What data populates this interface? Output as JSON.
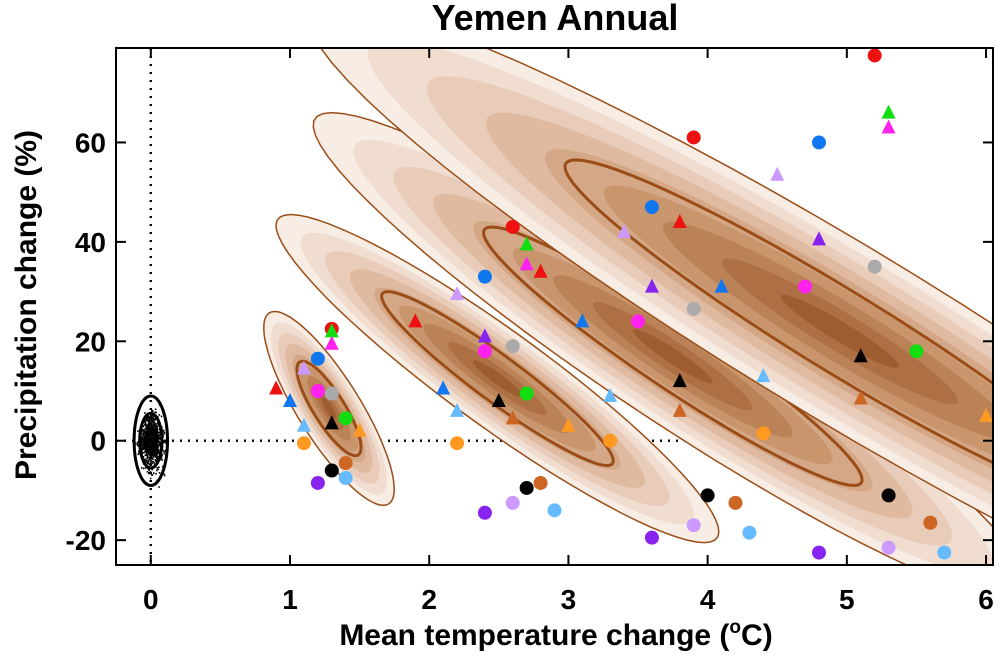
{
  "chart_data": {
    "type": "scatter",
    "title": "Yemen Annual",
    "xlabel": "Mean temperature change (",
    "xlabel_unit": "o",
    "xlabel_suffix": "C)",
    "ylabel": "Precipitation change (%)",
    "xlim": [
      -0.25,
      6.05
    ],
    "ylim": [
      -25,
      79
    ],
    "xticks": [
      0,
      1,
      2,
      3,
      4,
      5,
      6
    ],
    "xtick_labels": [
      "0",
      "1",
      "2",
      "3",
      "4",
      "5",
      "6"
    ],
    "yticks": [
      -20,
      0,
      20,
      40,
      60
    ],
    "ytick_labels": [
      "-20",
      "0",
      "20",
      "40",
      "60"
    ],
    "reference_lines": {
      "x": 0,
      "y": 0,
      "style": "dotted"
    },
    "noise_ellipses": [
      {
        "cx": 0.0,
        "cy": 0.0,
        "rx": 0.12,
        "ry": 9.0
      },
      {
        "cx": 0.0,
        "cy": 0.0,
        "rx": 0.08,
        "ry": 5.5
      },
      {
        "cx": 0.0,
        "cy": 0.0,
        "rx": 0.04,
        "ry": 2.5
      }
    ],
    "distributions": [
      {
        "cx": 1.28,
        "cy": 6.5,
        "rx_outer": 0.26,
        "ry_outer": 19.5,
        "rx_inner": 0.13,
        "ry_inner": 9.5,
        "tilt": -0.02
      },
      {
        "cx": 2.49,
        "cy": 12.5,
        "rx_outer": 0.57,
        "ry_outer": 33.0,
        "rx_inner": 0.27,
        "ry_inner": 17.5,
        "tilt": -0.045
      },
      {
        "cx": 3.75,
        "cy": 17.0,
        "rx_outer": 0.82,
        "ry_outer": 49.0,
        "rx_inner": 0.4,
        "ry_inner": 26.0,
        "tilt": -0.05
      },
      {
        "cx": 4.95,
        "cy": 22.0,
        "rx_outer": 1.18,
        "ry_outer": 66.0,
        "rx_inner": 0.55,
        "ry_inner": 34.5,
        "tilt": -0.055
      }
    ],
    "series": [
      {
        "name": "red",
        "color": "#ee1111",
        "circles": [
          [
            1.3,
            22.5
          ],
          [
            2.6,
            43
          ],
          [
            3.9,
            61
          ],
          [
            5.2,
            77.5
          ]
        ],
        "triangles": [
          [
            0.9,
            10.5
          ],
          [
            1.9,
            24
          ],
          [
            2.8,
            34
          ],
          [
            3.8,
            44
          ]
        ]
      },
      {
        "name": "green",
        "color": "#11dd11",
        "circles": [
          [
            1.4,
            4.5
          ],
          [
            2.7,
            9.5
          ],
          [
            5.5,
            18
          ]
        ],
        "triangles": [
          [
            1.3,
            22
          ],
          [
            2.7,
            39.5
          ],
          [
            5.3,
            66
          ]
        ]
      },
      {
        "name": "magenta",
        "color": "#ff22ee",
        "circles": [
          [
            1.2,
            10
          ],
          [
            2.4,
            18
          ],
          [
            3.5,
            24
          ],
          [
            4.7,
            31
          ]
        ],
        "triangles": [
          [
            1.3,
            19.5
          ],
          [
            2.7,
            35.5
          ],
          [
            5.3,
            63
          ]
        ]
      },
      {
        "name": "blue",
        "color": "#1177ee",
        "circles": [
          [
            1.2,
            16.5
          ],
          [
            2.4,
            33
          ],
          [
            3.6,
            47
          ],
          [
            4.8,
            60
          ]
        ],
        "triangles": [
          [
            1.0,
            8
          ],
          [
            2.1,
            10.5
          ],
          [
            3.1,
            24
          ],
          [
            4.1,
            31
          ]
        ]
      },
      {
        "name": "gray",
        "color": "#aaaaaa",
        "circles": [
          [
            1.3,
            9.5
          ],
          [
            2.6,
            19
          ],
          [
            3.9,
            26.5
          ],
          [
            5.2,
            35
          ]
        ],
        "triangles": []
      },
      {
        "name": "black",
        "color": "#000000",
        "circles": [
          [
            1.3,
            -6
          ],
          [
            2.7,
            -9.5
          ],
          [
            4.0,
            -11
          ],
          [
            5.3,
            -11
          ]
        ],
        "triangles": [
          [
            1.3,
            3.5
          ],
          [
            2.5,
            8
          ],
          [
            3.8,
            12
          ],
          [
            5.1,
            17
          ]
        ]
      },
      {
        "name": "orange",
        "color": "#ff9922",
        "circles": [
          [
            1.1,
            -0.5
          ],
          [
            2.2,
            -0.5
          ],
          [
            3.3,
            0
          ],
          [
            4.4,
            1.5
          ]
        ],
        "triangles": [
          [
            1.5,
            2
          ],
          [
            3.0,
            3
          ],
          [
            6.0,
            5
          ]
        ]
      },
      {
        "name": "brown",
        "color": "#cc6622",
        "circles": [
          [
            1.4,
            -4.5
          ],
          [
            2.8,
            -8.5
          ],
          [
            4.2,
            -12.5
          ],
          [
            5.6,
            -16.5
          ]
        ],
        "triangles": [
          [
            2.6,
            4.5
          ],
          [
            3.8,
            6
          ],
          [
            5.1,
            8.5
          ]
        ]
      },
      {
        "name": "purple",
        "color": "#8822ee",
        "circles": [
          [
            1.2,
            -8.5
          ],
          [
            2.4,
            -14.5
          ],
          [
            3.6,
            -19.5
          ],
          [
            4.8,
            -22.5
          ]
        ],
        "triangles": [
          [
            2.4,
            21
          ],
          [
            3.6,
            31
          ],
          [
            4.8,
            40.5
          ]
        ]
      },
      {
        "name": "lavender",
        "color": "#cc99ff",
        "circles": [
          [
            2.6,
            -12.5
          ],
          [
            3.9,
            -17
          ],
          [
            5.3,
            -21.5
          ]
        ],
        "triangles": [
          [
            1.1,
            14.5
          ],
          [
            2.2,
            29.5
          ],
          [
            3.4,
            42
          ],
          [
            4.5,
            53.5
          ]
        ]
      },
      {
        "name": "lightblue",
        "color": "#66bbff",
        "circles": [
          [
            1.4,
            -7.5
          ],
          [
            2.9,
            -14
          ],
          [
            4.3,
            -18.5
          ],
          [
            5.7,
            -22.5
          ]
        ],
        "triangles": [
          [
            1.1,
            3
          ],
          [
            2.2,
            6
          ],
          [
            3.3,
            9
          ],
          [
            4.4,
            13
          ]
        ]
      }
    ]
  }
}
